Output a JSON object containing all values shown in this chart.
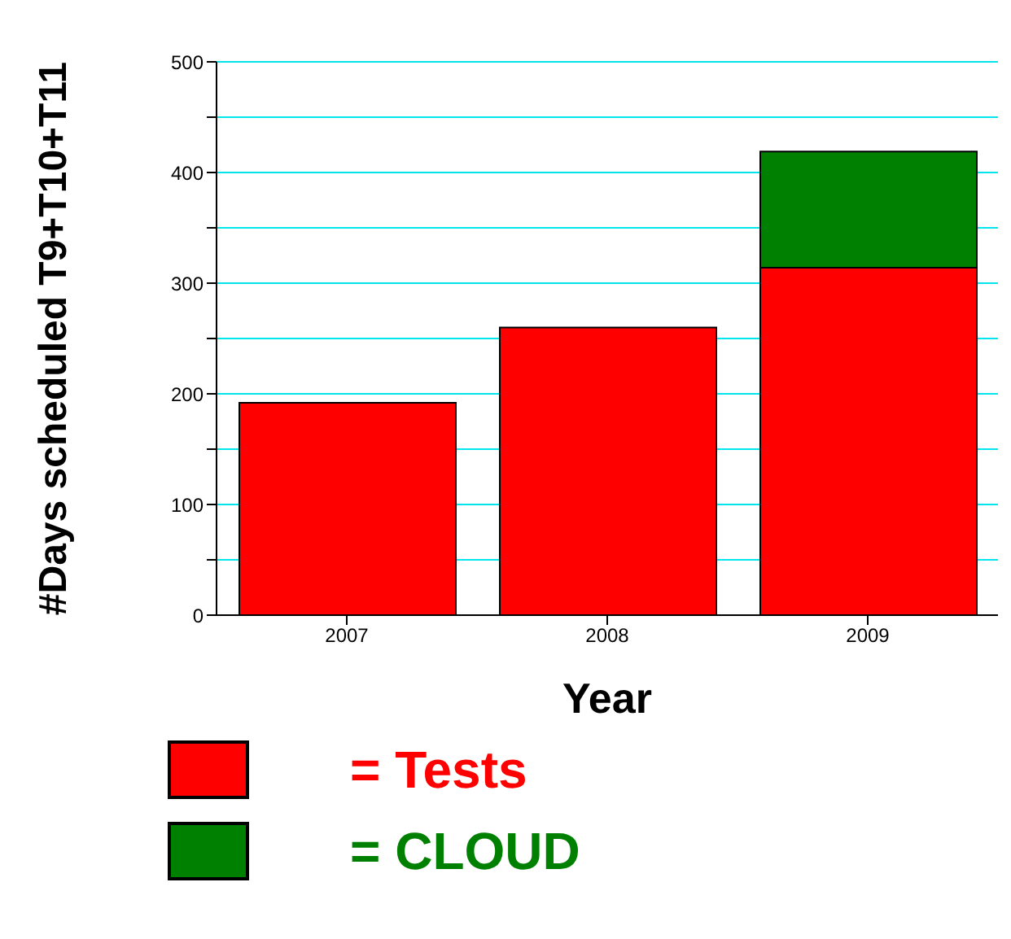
{
  "chart_data": {
    "type": "bar",
    "xlabel": "Year",
    "ylabel": "#Days scheduled T9+T10+T11",
    "categories": [
      "2007",
      "2008",
      "2009"
    ],
    "stacked": true,
    "series": [
      {
        "name": "= Tests",
        "color": "#ff0000",
        "values": [
          192,
          260,
          314
        ]
      },
      {
        "name": "= CLOUD",
        "color": "#008000",
        "values": [
          null,
          null,
          105
        ]
      }
    ],
    "ylim": [
      0,
      500
    ],
    "yticks": [
      0,
      {
        "value": 50,
        "label": null
      },
      100,
      {
        "value": 150,
        "label": null
      },
      200,
      {
        "value": 250,
        "label": null
      },
      300,
      {
        "value": 350,
        "label": null
      },
      400,
      {
        "value": 450,
        "label": null
      },
      500
    ],
    "grid": "y",
    "legend": "bottom"
  }
}
